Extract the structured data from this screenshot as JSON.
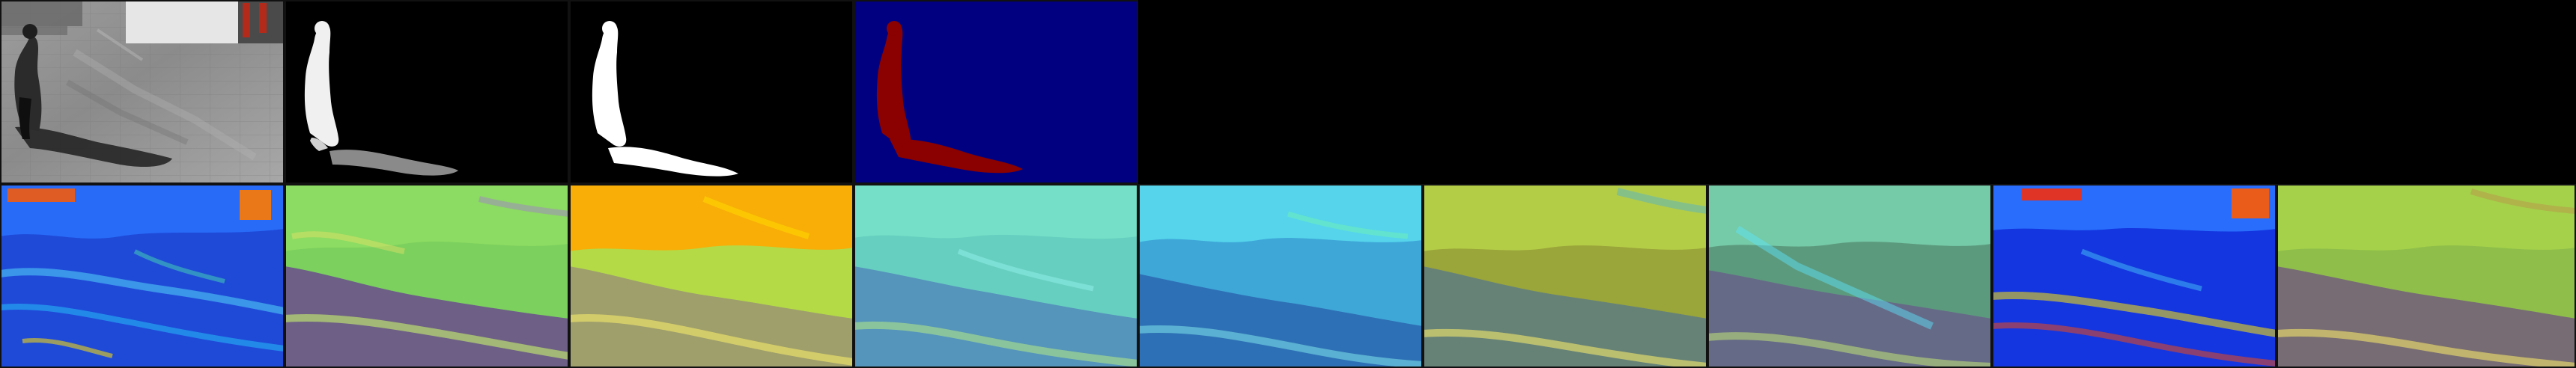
{
  "figure": {
    "background_color": "#000000",
    "top_row": {
      "panels": [
        {
          "kind": "input-frame",
          "icon": "photo-icon"
        },
        {
          "kind": "soft-mask",
          "icon": "mask-icon"
        },
        {
          "kind": "binary-mask",
          "icon": "mask-icon"
        },
        {
          "kind": "label-map",
          "icon": "segmentation-icon",
          "colors": {
            "background": "#000080",
            "foreground": "#8b0000"
          }
        }
      ]
    },
    "bottom_row": {
      "panels": [
        {
          "kind": "feature-map",
          "palette": "blue"
        },
        {
          "kind": "feature-map",
          "palette": "purple-green"
        },
        {
          "kind": "feature-map",
          "palette": "orange-yellow"
        },
        {
          "kind": "feature-map",
          "palette": "teal"
        },
        {
          "kind": "feature-map",
          "palette": "cyan"
        },
        {
          "kind": "feature-map",
          "palette": "olive-yellow"
        },
        {
          "kind": "feature-map",
          "palette": "green-purple"
        },
        {
          "kind": "feature-map",
          "palette": "blue-red"
        },
        {
          "kind": "feature-map",
          "palette": "purple-yellow"
        }
      ]
    }
  }
}
